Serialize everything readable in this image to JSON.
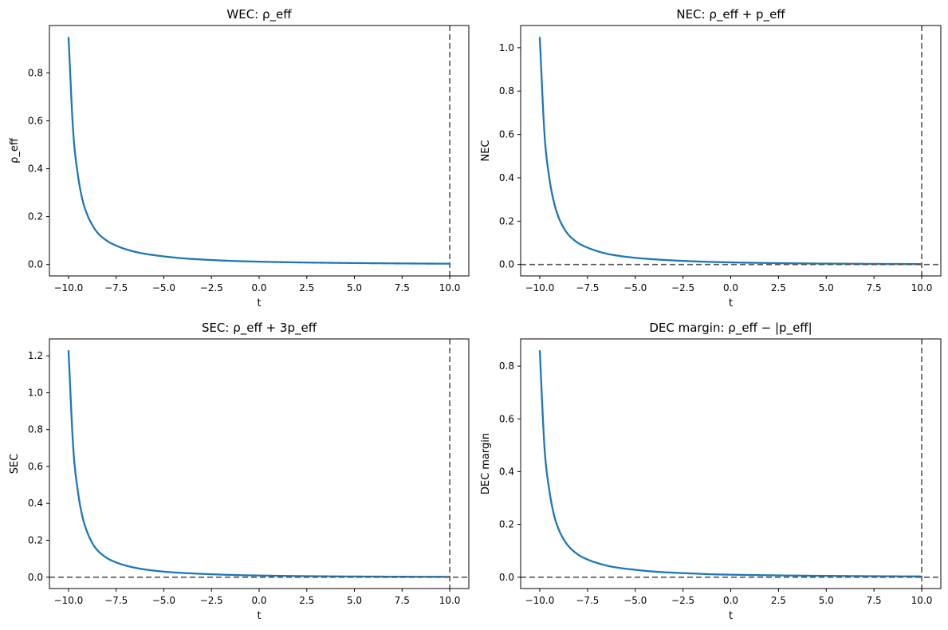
{
  "chart_data": [
    {
      "type": "line",
      "title": "WEC: ρ_eff",
      "xlabel": "t",
      "ylabel": "ρ_eff",
      "xlim": [
        -11,
        11
      ],
      "ylim": [
        -0.0475,
        0.9975
      ],
      "xticks": [
        "−10.0",
        "−7.5",
        "−5.0",
        "−2.5",
        "0.0",
        "2.5",
        "5.0",
        "7.5",
        "10.0"
      ],
      "yticks": [
        "0.0",
        "0.2",
        "0.4",
        "0.6",
        "0.8"
      ],
      "xtick_values": [
        -10,
        -7.5,
        -5,
        -2.5,
        0,
        2.5,
        5,
        7.5,
        10
      ],
      "ytick_values": [
        0,
        0.2,
        0.4,
        0.6,
        0.8
      ],
      "x": [
        -10,
        -9.75,
        -9.5,
        -9.25,
        -9,
        -8.75,
        -8.5,
        -8,
        -7.5,
        -7,
        -6.5,
        -6,
        -5,
        -4,
        -3,
        -2,
        -1,
        0,
        2,
        4,
        6,
        8,
        10
      ],
      "series": [
        {
          "values": [
            0.95,
            0.55,
            0.37,
            0.265,
            0.205,
            0.165,
            0.135,
            0.1,
            0.079,
            0.064,
            0.053,
            0.045,
            0.034,
            0.026,
            0.021,
            0.017,
            0.014,
            0.012,
            0.009,
            0.007,
            0.0055,
            0.0043,
            0.0035
          ]
        }
      ],
      "vlines": [
        10
      ],
      "hlines": []
    },
    {
      "type": "line",
      "title": "NEC: ρ_eff + p_eff",
      "xlabel": "t",
      "ylabel": "NEC",
      "xlim": [
        -11,
        11
      ],
      "ylim": [
        -0.0525,
        1.1025
      ],
      "xticks": [
        "−10.0",
        "−7.5",
        "−5.0",
        "−2.5",
        "0.0",
        "2.5",
        "5.0",
        "7.5",
        "10.0"
      ],
      "yticks": [
        "0.0",
        "0.2",
        "0.4",
        "0.6",
        "0.8",
        "1.0"
      ],
      "xtick_values": [
        -10,
        -7.5,
        -5,
        -2.5,
        0,
        2.5,
        5,
        7.5,
        10
      ],
      "ytick_values": [
        0,
        0.2,
        0.4,
        0.6,
        0.8,
        1.0
      ],
      "x": [
        -10,
        -9.75,
        -9.5,
        -9.25,
        -9,
        -8.75,
        -8.5,
        -8,
        -7.5,
        -7,
        -6.5,
        -6,
        -5,
        -4,
        -3,
        -2,
        -1,
        0,
        2,
        4,
        6,
        8,
        10
      ],
      "series": [
        {
          "values": [
            1.05,
            0.6,
            0.4,
            0.285,
            0.215,
            0.17,
            0.138,
            0.1,
            0.078,
            0.062,
            0.05,
            0.042,
            0.031,
            0.024,
            0.019,
            0.015,
            0.012,
            0.01,
            0.007,
            0.005,
            0.0038,
            0.0028,
            0.0022
          ]
        }
      ],
      "vlines": [
        10
      ],
      "hlines": [
        0
      ]
    },
    {
      "type": "line",
      "title": "SEC: ρ_eff + 3p_eff",
      "xlabel": "t",
      "ylabel": "SEC",
      "xlim": [
        -11,
        11
      ],
      "ylim": [
        -0.0615,
        1.2915
      ],
      "xticks": [
        "−10.0",
        "−7.5",
        "−5.0",
        "−2.5",
        "0.0",
        "2.5",
        "5.0",
        "7.5",
        "10.0"
      ],
      "yticks": [
        "0.0",
        "0.2",
        "0.4",
        "0.6",
        "0.8",
        "1.0",
        "1.2"
      ],
      "xtick_values": [
        -10,
        -7.5,
        -5,
        -2.5,
        0,
        2.5,
        5,
        7.5,
        10
      ],
      "ytick_values": [
        0,
        0.2,
        0.4,
        0.6,
        0.8,
        1.0,
        1.2
      ],
      "x": [
        -10,
        -9.75,
        -9.5,
        -9.25,
        -9,
        -8.75,
        -8.5,
        -8,
        -7.5,
        -7,
        -6.5,
        -6,
        -5,
        -4,
        -3,
        -2,
        -1,
        0,
        2,
        4,
        6,
        8,
        10
      ],
      "series": [
        {
          "values": [
            1.23,
            0.7,
            0.46,
            0.32,
            0.24,
            0.185,
            0.148,
            0.105,
            0.08,
            0.063,
            0.051,
            0.042,
            0.03,
            0.023,
            0.018,
            0.014,
            0.011,
            0.009,
            0.006,
            0.0043,
            0.0032,
            0.0024,
            0.0018
          ]
        }
      ],
      "vlines": [
        10
      ],
      "hlines": [
        0
      ]
    },
    {
      "type": "line",
      "title": "DEC margin: ρ_eff − |p_eff|",
      "xlabel": "t",
      "ylabel": "DEC margin",
      "xlim": [
        -11,
        11
      ],
      "ylim": [
        -0.043,
        0.903
      ],
      "xticks": [
        "−10.0",
        "−7.5",
        "−5.0",
        "−2.5",
        "0.0",
        "2.5",
        "5.0",
        "7.5",
        "10.0"
      ],
      "yticks": [
        "0.0",
        "0.2",
        "0.4",
        "0.6",
        "0.8"
      ],
      "xtick_values": [
        -10,
        -7.5,
        -5,
        -2.5,
        0,
        2.5,
        5,
        7.5,
        10
      ],
      "ytick_values": [
        0,
        0.2,
        0.4,
        0.6,
        0.8
      ],
      "x": [
        -10,
        -9.75,
        -9.5,
        -9.25,
        -9,
        -8.75,
        -8.5,
        -8,
        -7.5,
        -7,
        -6.5,
        -6,
        -5,
        -4,
        -3,
        -2,
        -1,
        0,
        2,
        4,
        6,
        8,
        10
      ],
      "series": [
        {
          "values": [
            0.86,
            0.49,
            0.33,
            0.235,
            0.18,
            0.144,
            0.118,
            0.086,
            0.067,
            0.054,
            0.044,
            0.037,
            0.028,
            0.021,
            0.017,
            0.014,
            0.011,
            0.0095,
            0.0072,
            0.0056,
            0.0044,
            0.0035,
            0.0028
          ]
        }
      ],
      "vlines": [
        10
      ],
      "hlines": [
        0
      ]
    }
  ]
}
